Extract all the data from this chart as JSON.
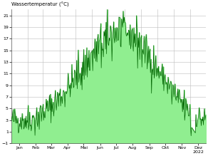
{
  "title": "Wassertemperatur (°C)",
  "ylim": [
    -1,
    22
  ],
  "yticks": [
    -1,
    1,
    3,
    5,
    7,
    9,
    11,
    13,
    15,
    17,
    19,
    21
  ],
  "month_labels": [
    "Jan",
    "Feb",
    "Mar",
    "Apr",
    "Mai",
    "Jun",
    "Jul",
    "Aug",
    "Sep",
    "Okt",
    "Nov",
    "Dez\n2022"
  ],
  "line_color": "#006400",
  "fill_color": "#90EE90",
  "background_color": "#ffffff",
  "grid_color": "#bbbbbb"
}
